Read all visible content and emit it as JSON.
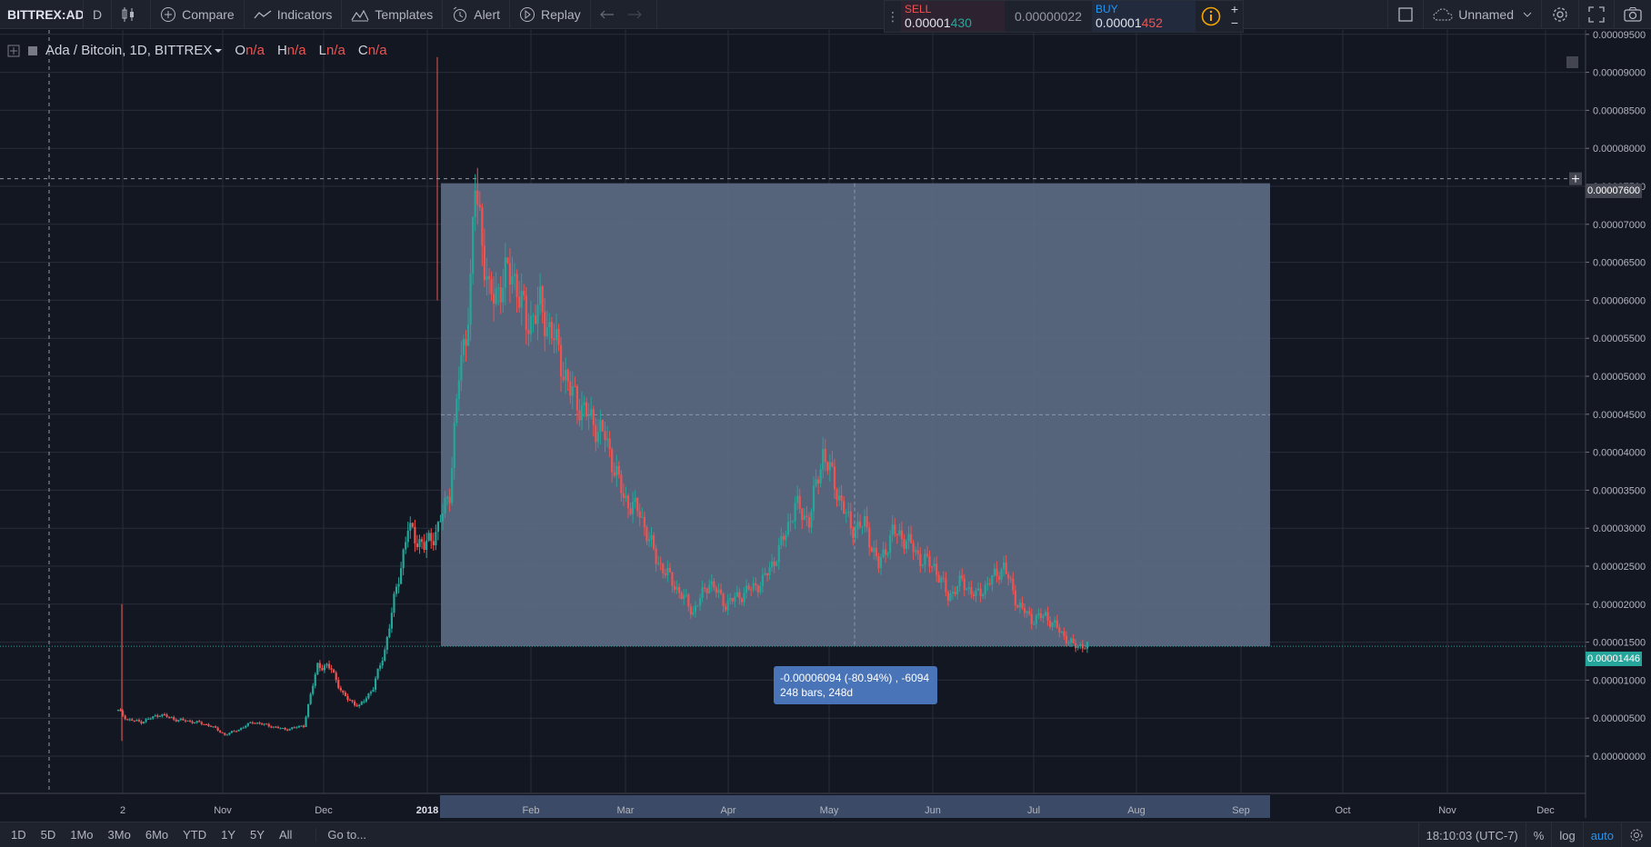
{
  "toolbar": {
    "symbol": "BITTREX:AD",
    "interval": "D",
    "compare": "Compare",
    "indicators": "Indicators",
    "templates": "Templates",
    "alert": "Alert",
    "replay": "Replay"
  },
  "trade": {
    "sell_label": "SELL",
    "sell_price_main": "0.00001",
    "sell_price_tail": "430",
    "spread": "0.00000022",
    "buy_label": "BUY",
    "buy_price_main": "0.00001",
    "buy_price_tail": "452",
    "plus": "+",
    "minus": "−"
  },
  "right_toolbar": {
    "layout_name": "Unnamed"
  },
  "legend": {
    "title": "Ada / Bitcoin, 1D, BITTREX",
    "o_label": "O",
    "o_val": "n/a",
    "h_label": "H",
    "h_val": "n/a",
    "l_label": "L",
    "l_val": "n/a",
    "c_label": "C",
    "c_val": "n/a"
  },
  "measure_tooltip": {
    "line1": "-0.00006094 (-80.94%) , -6094",
    "line2": "248 bars, 248d"
  },
  "price_tag": "0.00001446",
  "crosshair_tag": "0.00007600",
  "colors": {
    "up": "#26a69a",
    "down": "#ef5350",
    "measure_fill": "#5d6b85",
    "accent": "#2196f3"
  },
  "chart_data": {
    "type": "candlestick",
    "symbol": "ADA/BTC",
    "y_ticks": [
      "0.00009500",
      "0.00009000",
      "0.00008500",
      "0.00008000",
      "0.00007500",
      "0.00007000",
      "0.00006500",
      "0.00006000",
      "0.00005500",
      "0.00005000",
      "0.00004500",
      "0.00004000",
      "0.00003500",
      "0.00003000",
      "0.00002500",
      "0.00002000",
      "0.00001500",
      "0.00001000",
      "0.00000500",
      "0.00000000"
    ],
    "x_ticks": [
      "2",
      "Nov",
      "Dec",
      "2018",
      "Feb",
      "Mar",
      "Apr",
      "May",
      "Jun",
      "Jul",
      "Aug",
      "Sep",
      "Oct",
      "Nov",
      "Dec"
    ],
    "ylim": [
      0,
      9.6e-05
    ],
    "close_path": [
      [
        0,
        6e-06
      ],
      [
        4,
        4.8e-06
      ],
      [
        10,
        4.5e-06
      ],
      [
        18,
        5.5e-06
      ],
      [
        25,
        4.8e-06
      ],
      [
        33,
        4.5e-06
      ],
      [
        40,
        4e-06
      ],
      [
        46,
        2.8e-06
      ],
      [
        52,
        3.5e-06
      ],
      [
        58,
        4.5e-06
      ],
      [
        65,
        4e-06
      ],
      [
        72,
        3.5e-06
      ],
      [
        80,
        4e-06
      ],
      [
        86,
        1.2e-05
      ],
      [
        92,
        1.15e-05
      ],
      [
        97,
        8e-06
      ],
      [
        104,
        6.5e-06
      ],
      [
        110,
        9e-06
      ],
      [
        115,
        1.4e-05
      ],
      [
        120,
        2.2e-05
      ],
      [
        125,
        3e-05
      ],
      [
        132,
        2.75e-05
      ],
      [
        138,
        3e-05
      ],
      [
        143,
        3.5e-05
      ],
      [
        147,
        5e-05
      ],
      [
        150,
        5.6e-05
      ],
      [
        152,
        6.2e-05
      ],
      [
        154,
        7.5e-05
      ],
      [
        156,
        7.1e-05
      ],
      [
        160,
        6e-05
      ],
      [
        165,
        6.2e-05
      ],
      [
        170,
        6.4e-05
      ],
      [
        176,
        5.7e-05
      ],
      [
        182,
        5.9e-05
      ],
      [
        188,
        5.5e-05
      ],
      [
        195,
        4.8e-05
      ],
      [
        202,
        4.5e-05
      ],
      [
        210,
        4.2e-05
      ],
      [
        218,
        3.4e-05
      ],
      [
        225,
        3.2e-05
      ],
      [
        232,
        2.6e-05
      ],
      [
        240,
        2.25e-05
      ],
      [
        248,
        1.9e-05
      ],
      [
        255,
        2.3e-05
      ],
      [
        262,
        2e-05
      ],
      [
        270,
        2.15e-05
      ],
      [
        278,
        2.3e-05
      ],
      [
        285,
        2.7e-05
      ],
      [
        292,
        3.3e-05
      ],
      [
        298,
        3.1e-05
      ],
      [
        304,
        4e-05
      ],
      [
        310,
        3.5e-05
      ],
      [
        316,
        3e-05
      ],
      [
        322,
        3.05e-05
      ],
      [
        328,
        2.5e-05
      ],
      [
        334,
        2.95e-05
      ],
      [
        340,
        2.85e-05
      ],
      [
        346,
        2.6e-05
      ],
      [
        352,
        2.5e-05
      ],
      [
        358,
        2.1e-05
      ],
      [
        364,
        2.3e-05
      ],
      [
        370,
        2.1e-05
      ],
      [
        376,
        2.3e-05
      ],
      [
        382,
        2.5e-05
      ],
      [
        388,
        2e-05
      ],
      [
        394,
        1.8e-05
      ],
      [
        400,
        1.85e-05
      ],
      [
        406,
        1.65e-05
      ],
      [
        412,
        1.45e-05
      ],
      [
        418,
        1.46e-05
      ]
    ]
  }
}
